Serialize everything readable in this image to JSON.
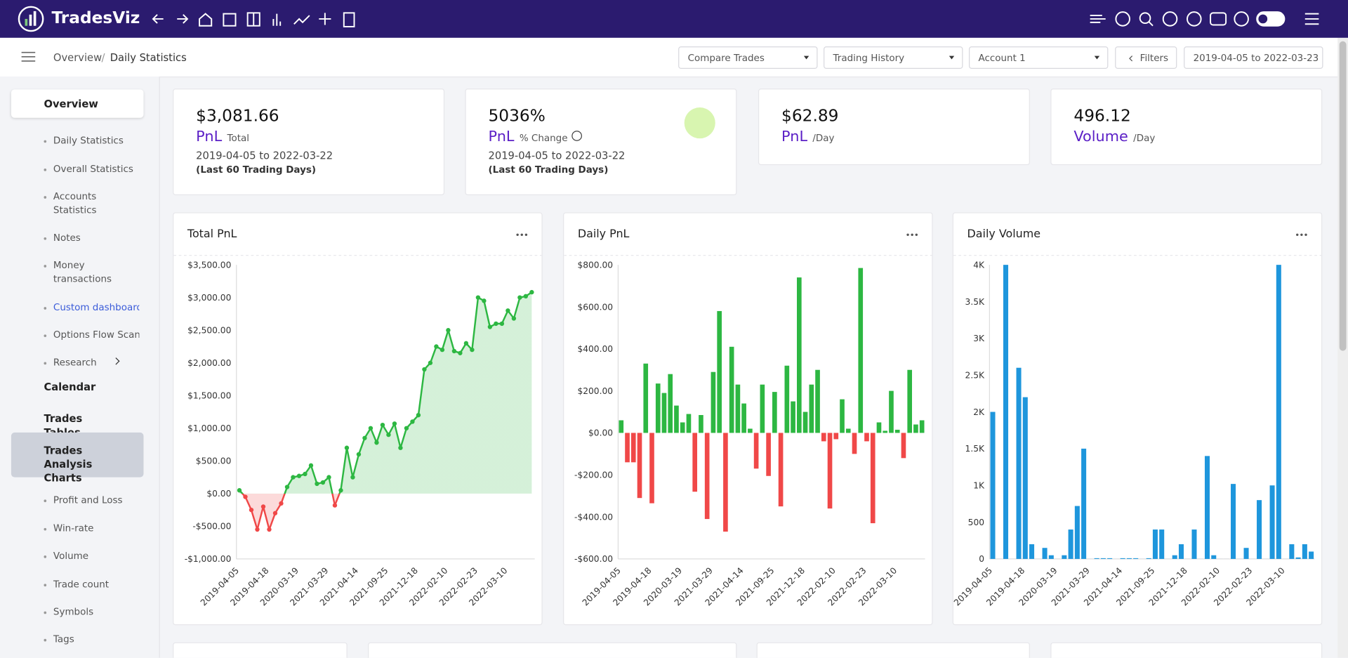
{
  "header": {
    "brand": "TradesViz"
  },
  "breadcrumb": [
    "Overview",
    "Daily Statistics"
  ],
  "toolbar": {
    "compare": "Compare Trades",
    "history": "Trading History",
    "account": "Account 1",
    "filters": "Filters",
    "date_range": "2019-04-05 to 2022-03-23"
  },
  "sidebar": [
    {
      "label": "Overview",
      "children": [
        "Daily Statistics",
        "Overall Statistics",
        "Accounts Statistics",
        "Notes",
        "Money transactions",
        "Custom dashboard",
        "Options Flow Scan",
        "Research"
      ]
    },
    {
      "label": "Calendar"
    },
    {
      "label": "Trades Tables"
    },
    {
      "label": "Trades Analysis Charts",
      "children": [
        "Profit and Loss",
        "Win-rate",
        "Volume",
        "Trade count",
        "Symbols",
        "Tags"
      ]
    }
  ],
  "stats": [
    {
      "value": "$3,081.66",
      "label": "PnL",
      "sub": "Total",
      "range": "2019-04-05 to 2022-03-22",
      "note": "(Last 60 Trading Days)"
    },
    {
      "value": "5036%",
      "label": "PnL",
      "sub": "% Change",
      "range": "2019-04-05 to 2022-03-22",
      "note": "(Last 60 Trading Days)"
    },
    {
      "value": "$62.89",
      "label": "PnL",
      "sub": "/Day"
    },
    {
      "value": "496.12",
      "label": "Volume",
      "sub": "/Day"
    }
  ],
  "chart_data": [
    {
      "type": "line",
      "title": "Total PnL",
      "color": "#2db742",
      "negative_color": "#f04848",
      "categories": [
        "2019-04-05",
        null,
        null,
        null,
        null,
        "2019-04-18",
        null,
        null,
        null,
        null,
        "2020-03-19",
        null,
        null,
        null,
        null,
        "2021-03-29",
        null,
        null,
        null,
        null,
        "2021-04-14",
        null,
        null,
        null,
        null,
        "2021-09-25",
        null,
        null,
        null,
        null,
        "2021-12-18",
        null,
        null,
        null,
        null,
        "2022-02-10",
        null,
        null,
        null,
        null,
        "2022-02-23",
        null,
        null,
        null,
        null,
        "2022-03-10",
        null,
        null,
        null,
        null
      ],
      "values": [
        50,
        -50,
        -250,
        -550,
        -200,
        -550,
        -300,
        -150,
        100,
        250,
        270,
        300,
        430,
        150,
        170,
        250,
        -180,
        50,
        700,
        250,
        600,
        850,
        1000,
        780,
        1050,
        900,
        1070,
        700,
        1000,
        1100,
        1200,
        1900,
        2000,
        2250,
        2200,
        2500,
        2180,
        2150,
        2300,
        2200,
        3000,
        2950,
        2550,
        2600,
        2600,
        2800,
        2680,
        3000,
        3020,
        3081.66
      ],
      "ylim": [
        -1000,
        3500
      ],
      "yticks": [
        {
          "value": -1000,
          "label": "-$1,000.00"
        },
        {
          "value": -500,
          "label": "-$500.00"
        },
        {
          "value": 0,
          "label": "$0.00"
        },
        {
          "value": 500,
          "label": "$500.00"
        },
        {
          "value": 1000,
          "label": "$1,000.00"
        },
        {
          "value": 1500,
          "label": "$1,500.00"
        },
        {
          "value": 2000,
          "label": "$2,000.00"
        },
        {
          "value": 2500,
          "label": "$2,500.00"
        },
        {
          "value": 3000,
          "label": "$3,000.00"
        },
        {
          "value": 3500,
          "label": "$3,500.00"
        }
      ]
    },
    {
      "type": "bar",
      "title": "Daily PnL",
      "color": "#2db742",
      "negative_color": "#f04848",
      "categories": [
        "2019-04-05",
        null,
        null,
        null,
        null,
        "2019-04-18",
        null,
        null,
        null,
        null,
        "2020-03-19",
        null,
        null,
        null,
        null,
        "2021-03-29",
        null,
        null,
        null,
        null,
        "2021-04-14",
        null,
        null,
        null,
        null,
        "2021-09-25",
        null,
        null,
        null,
        null,
        "2021-12-18",
        null,
        null,
        null,
        null,
        "2022-02-10",
        null,
        null,
        null,
        null,
        "2022-02-23",
        null,
        null,
        null,
        null,
        "2022-03-10",
        null,
        null,
        null,
        null
      ],
      "values": [
        60,
        -140,
        -140,
        -310,
        330,
        -335,
        235,
        190,
        280,
        130,
        50,
        90,
        -280,
        85,
        -410,
        290,
        580,
        -470,
        410,
        230,
        140,
        20,
        -170,
        230,
        -205,
        195,
        -350,
        320,
        150,
        740,
        100,
        230,
        300,
        -40,
        -360,
        -30,
        160,
        20,
        -100,
        785,
        -40,
        -430,
        50,
        10,
        200,
        15,
        -120,
        300,
        40,
        60
      ],
      "ylim": [
        -600,
        800
      ],
      "yticks": [
        {
          "value": -600,
          "label": "-$600.00"
        },
        {
          "value": -400,
          "label": "-$400.00"
        },
        {
          "value": -200,
          "label": "-$200.00"
        },
        {
          "value": 0,
          "label": "$0.00"
        },
        {
          "value": 200,
          "label": "$200.00"
        },
        {
          "value": 400,
          "label": "$400.00"
        },
        {
          "value": 600,
          "label": "$600.00"
        },
        {
          "value": 800,
          "label": "$800.00"
        }
      ]
    },
    {
      "type": "bar",
      "title": "Daily Volume",
      "color": "#1e96dc",
      "categories": [
        "2019-04-05",
        null,
        null,
        null,
        null,
        "2019-04-18",
        null,
        null,
        null,
        null,
        "2020-03-19",
        null,
        null,
        null,
        null,
        "2021-03-29",
        null,
        null,
        null,
        null,
        "2021-04-14",
        null,
        null,
        null,
        null,
        "2021-09-25",
        null,
        null,
        null,
        null,
        "2021-12-18",
        null,
        null,
        null,
        null,
        "2022-02-10",
        null,
        null,
        null,
        null,
        "2022-02-23",
        null,
        null,
        null,
        null,
        "2022-03-10",
        null,
        null,
        null,
        null
      ],
      "values": [
        2000,
        0,
        4000,
        0,
        2600,
        2200,
        200,
        0,
        150,
        50,
        0,
        50,
        400,
        720,
        1500,
        0,
        10,
        10,
        10,
        0,
        10,
        10,
        10,
        0,
        10,
        400,
        400,
        0,
        50,
        200,
        0,
        400,
        0,
        1400,
        50,
        0,
        0,
        1020,
        0,
        150,
        0,
        800,
        0,
        1000,
        4000,
        0,
        200,
        20,
        200,
        100
      ],
      "ylim": [
        0,
        4000
      ],
      "yticks": [
        0,
        500,
        {
          "value": 1000,
          "label": "1K"
        },
        {
          "value": 1500,
          "label": "1.5K"
        },
        {
          "value": 2000,
          "label": "2K"
        },
        {
          "value": 2500,
          "label": "2.5K"
        },
        {
          "value": 3000,
          "label": "3K"
        },
        {
          "value": 3500,
          "label": "3.5K"
        },
        {
          "value": 4000,
          "label": "4K"
        }
      ]
    }
  ]
}
